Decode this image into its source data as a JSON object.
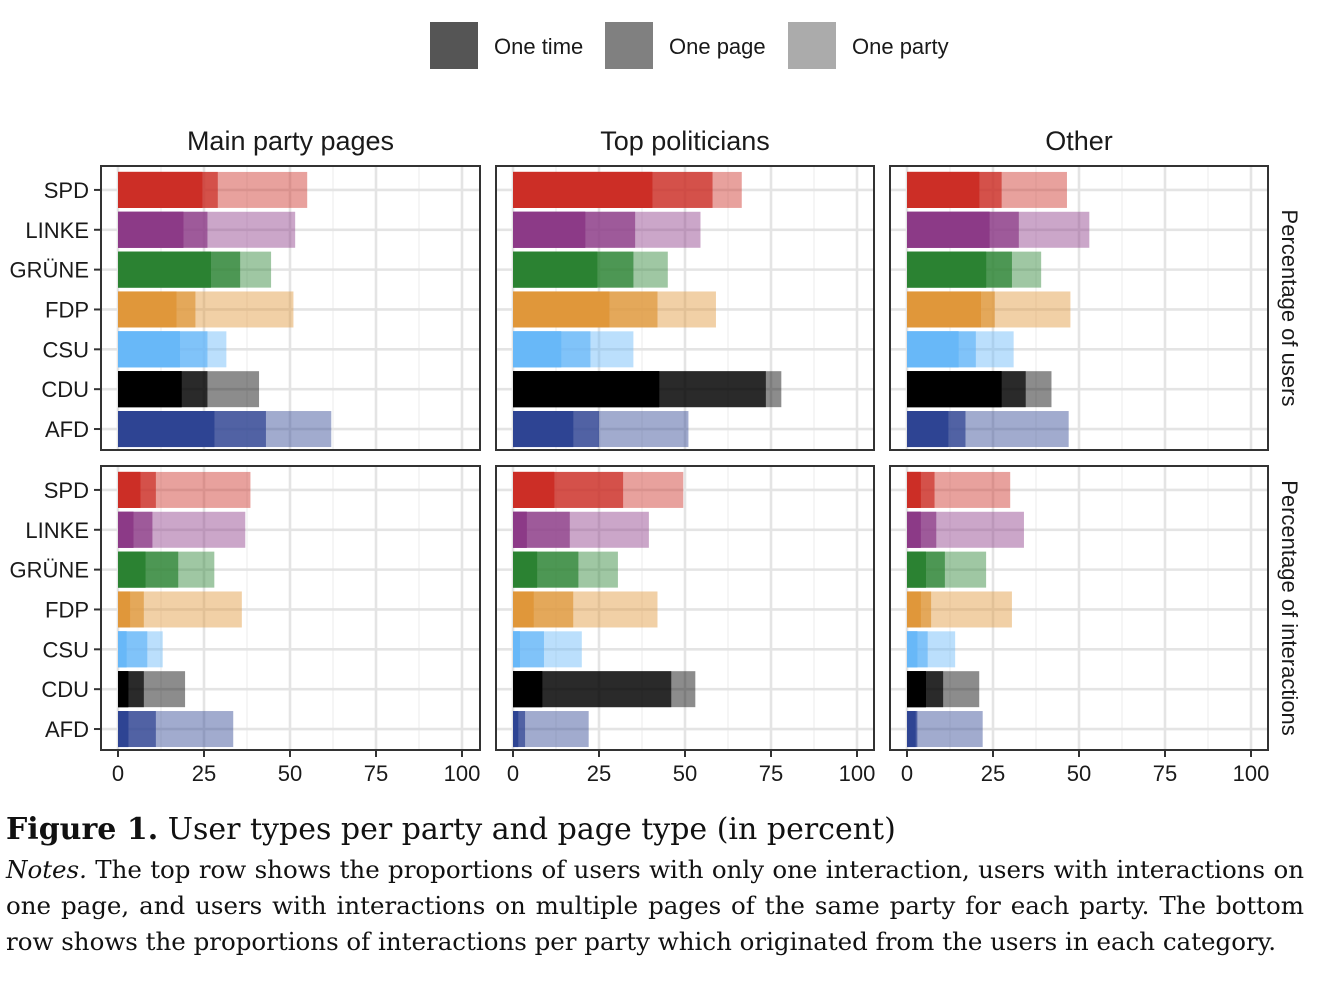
{
  "chart_data": {
    "type": "bar",
    "orientation": "horizontal",
    "stacking": "overlaid-cumulative",
    "legend": {
      "position": "top",
      "entries": [
        {
          "name": "One time",
          "color": "#555555"
        },
        {
          "name": "One page",
          "color": "#808080"
        },
        {
          "name": "One party",
          "color": "#ababab"
        }
      ]
    },
    "categories": [
      "SPD",
      "LINKE",
      "GRÜNE",
      "FDP",
      "CSU",
      "CDU",
      "AFD"
    ],
    "party_colors": {
      "SPD": "#cc2e26",
      "LINKE": "#8c3a87",
      "GRÜNE": "#2b8232",
      "FDP": "#e0973a",
      "CSU": "#68b8f8",
      "CDU": "#000000",
      "AFD": "#2e4493"
    },
    "columns": [
      "Main party pages",
      "Top politicians",
      "Other"
    ],
    "rows": [
      "Percentage of users",
      "Percentage of interactions"
    ],
    "xlim": [
      0,
      100
    ],
    "x_ticks": [
      0,
      25,
      50,
      75,
      100
    ],
    "x_tick_labels": [
      "0",
      "25",
      "50",
      "75",
      "100"
    ],
    "grid": true,
    "panels": [
      {
        "row": 0,
        "col": 0,
        "values": {
          "SPD": [
            24.5,
            29,
            55
          ],
          "LINKE": [
            19,
            26,
            51.5
          ],
          "GRÜNE": [
            27,
            35.5,
            44.5
          ],
          "FDP": [
            17,
            22.5,
            51
          ],
          "CSU": [
            18,
            26,
            31.5
          ],
          "CDU": [
            18.5,
            26,
            41
          ],
          "AFD": [
            28,
            43,
            62
          ]
        }
      },
      {
        "row": 0,
        "col": 1,
        "values": {
          "SPD": [
            40.5,
            58,
            66.5
          ],
          "LINKE": [
            21,
            35.5,
            54.5
          ],
          "GRÜNE": [
            24.5,
            35,
            45
          ],
          "FDP": [
            28,
            42,
            59
          ],
          "CSU": [
            14,
            22.5,
            35
          ],
          "CDU": [
            42.5,
            73.5,
            78
          ],
          "AFD": [
            17.5,
            25,
            51
          ]
        }
      },
      {
        "row": 0,
        "col": 2,
        "values": {
          "SPD": [
            21,
            27.5,
            46.5
          ],
          "LINKE": [
            24,
            32.5,
            53
          ],
          "GRÜNE": [
            23,
            30.5,
            39
          ],
          "FDP": [
            21.5,
            25.5,
            47.5
          ],
          "CSU": [
            15,
            20,
            31
          ],
          "CDU": [
            27.5,
            34.5,
            42
          ],
          "AFD": [
            12,
            17,
            47
          ]
        }
      },
      {
        "row": 1,
        "col": 0,
        "values": {
          "SPD": [
            6.5,
            11,
            38.5
          ],
          "LINKE": [
            4.5,
            10,
            37
          ],
          "GRÜNE": [
            8,
            17.5,
            28
          ],
          "FDP": [
            3.5,
            7.5,
            36
          ],
          "CSU": [
            2.5,
            8.5,
            13
          ],
          "CDU": [
            3,
            7.5,
            19.5
          ],
          "AFD": [
            3,
            11,
            33.5
          ]
        }
      },
      {
        "row": 1,
        "col": 1,
        "values": {
          "SPD": [
            12,
            32,
            49.5
          ],
          "LINKE": [
            4,
            16.5,
            39.5
          ],
          "GRÜNE": [
            7,
            19,
            30.5
          ],
          "FDP": [
            6,
            17.5,
            42
          ],
          "CSU": [
            2,
            9,
            20
          ],
          "CDU": [
            8.5,
            46,
            53
          ],
          "AFD": [
            1.5,
            3.5,
            22
          ]
        }
      },
      {
        "row": 1,
        "col": 2,
        "values": {
          "SPD": [
            4,
            8,
            30
          ],
          "LINKE": [
            4,
            8.5,
            34
          ],
          "GRÜNE": [
            5.5,
            11,
            23
          ],
          "FDP": [
            4,
            7,
            30.5
          ],
          "CSU": [
            3,
            6,
            14
          ],
          "CDU": [
            5.5,
            10.5,
            21
          ],
          "AFD": [
            2.5,
            3,
            22
          ]
        }
      }
    ]
  },
  "caption": {
    "figure_label": "Figure 1.",
    "title": "User types per party and page type (in percent)",
    "notes_label": "Notes.",
    "notes_text": "The top row shows the proportions of users with only one interaction, users with interactions on one page, and users with interactions on multiple pages of the same party for each party. The bottom row shows the proportions of interactions per party which originated from the users in each category."
  }
}
